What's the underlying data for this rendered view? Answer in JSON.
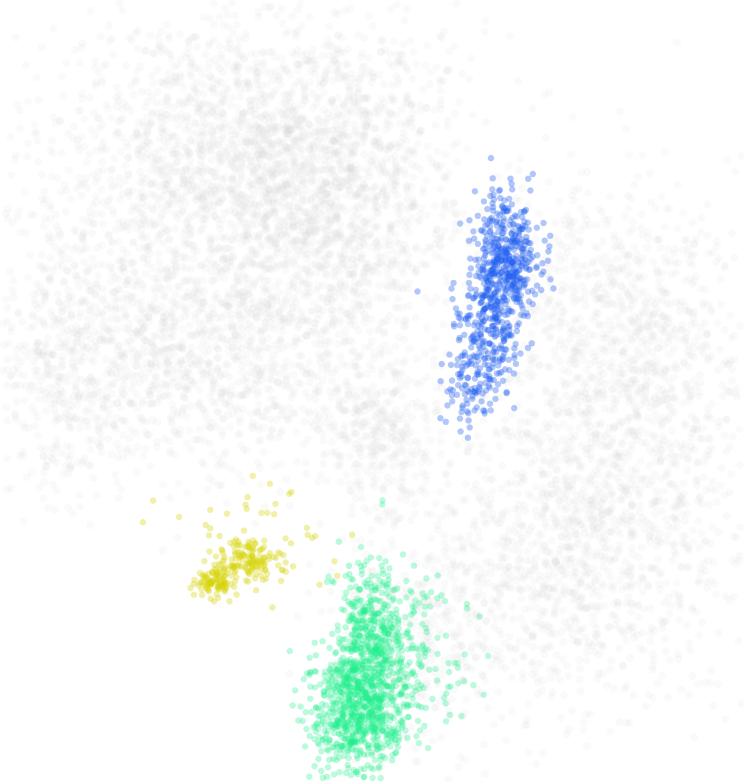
{
  "chart_data": {
    "type": "scatter",
    "title": "",
    "xlabel": "",
    "ylabel": "",
    "axes_visible": false,
    "grid": false,
    "legend": "none",
    "xlim": [
      0,
      100
    ],
    "ylim": [
      0,
      100
    ],
    "background_color": "#ffffff",
    "series": [
      {
        "color": "#d3d3d3",
        "alpha": 0.12,
        "clusters": [
          {
            "cx": 33,
            "cy": 79,
            "sx": 13,
            "sy": 10,
            "n": 1900
          },
          {
            "cx": 45,
            "cy": 75,
            "sx": 8,
            "sy": 11,
            "n": 900
          },
          {
            "cx": 12,
            "cy": 55,
            "sx": 9,
            "sy": 9,
            "n": 900
          },
          {
            "cx": 33,
            "cy": 55,
            "sx": 9,
            "sy": 8,
            "n": 700
          },
          {
            "cx": 51,
            "cy": 45,
            "sx": 4,
            "sy": 5,
            "n": 300
          },
          {
            "cx": 83,
            "cy": 55,
            "sx": 9,
            "sy": 11,
            "n": 1100
          },
          {
            "cx": 77,
            "cy": 29,
            "sx": 11,
            "sy": 10,
            "n": 1100
          },
          {
            "cx": 57,
            "cy": 19,
            "sx": 6,
            "sy": 8,
            "n": 300
          }
        ]
      },
      {
        "color": "#1f5ff0",
        "alpha": 0.35,
        "clusters": [
          {
            "cx": 68,
            "cy": 67,
            "sx": 2.2,
            "sy": 4.0,
            "n": 420
          },
          {
            "cx": 65.5,
            "cy": 58,
            "sx": 2.2,
            "sy": 4.2,
            "n": 260
          },
          {
            "cx": 63,
            "cy": 50,
            "sx": 1.6,
            "sy": 2.5,
            "n": 60
          }
        ]
      },
      {
        "color": "#1ef08a",
        "alpha": 0.3,
        "clusters": [
          {
            "cx": 48,
            "cy": 9,
            "sx": 3.2,
            "sy": 4.0,
            "n": 700
          },
          {
            "cx": 49.5,
            "cy": 19,
            "sx": 2.2,
            "sy": 5.0,
            "n": 400
          },
          {
            "cx": 55,
            "cy": 16,
            "sx": 4.0,
            "sy": 5.0,
            "n": 180
          }
        ]
      },
      {
        "color": "#d8d40a",
        "alpha": 0.35,
        "clusters": [
          {
            "cx": 33,
            "cy": 28.5,
            "sx": 2.0,
            "sy": 1.2,
            "n": 120
          },
          {
            "cx": 29,
            "cy": 25.5,
            "sx": 1.4,
            "sy": 0.9,
            "n": 90
          },
          {
            "cx": 35,
            "cy": 31,
            "sx": 5.0,
            "sy": 3.5,
            "n": 60
          }
        ]
      }
    ]
  }
}
